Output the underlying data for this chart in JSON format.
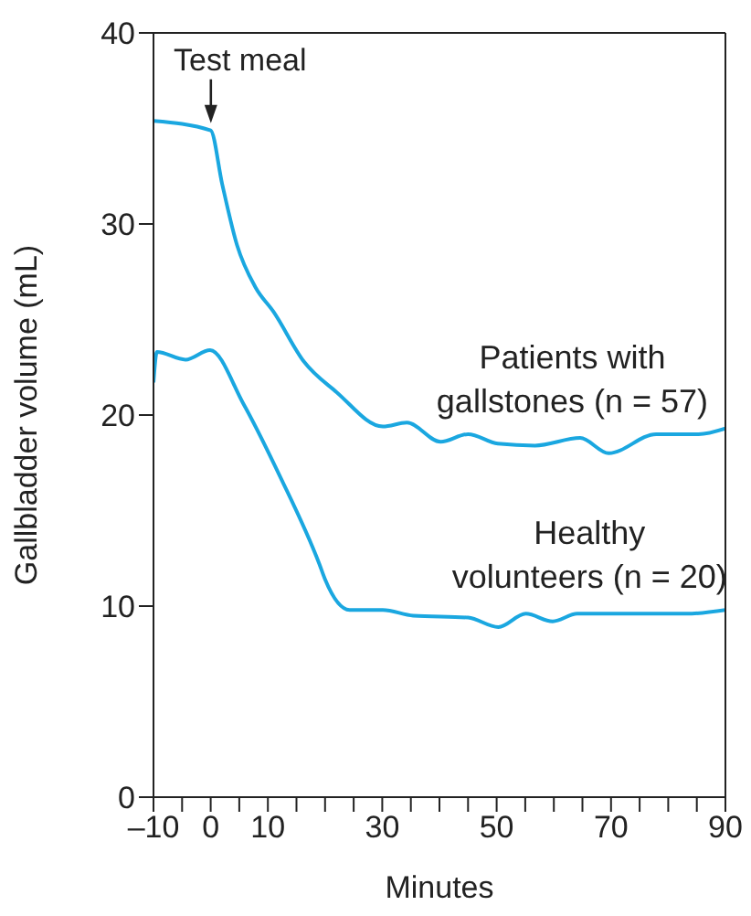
{
  "chart_data": {
    "type": "line",
    "xlabel": "Minutes",
    "ylabel": "Gallbladder volume (mL)",
    "xlim": [
      -10,
      90
    ],
    "ylim": [
      0,
      40
    ],
    "xticks": [
      {
        "value": -10,
        "label": "–10"
      },
      {
        "value": -5,
        "label": null
      },
      0,
      {
        "value": 5,
        "label": null
      },
      10,
      {
        "value": 15,
        "label": null
      },
      {
        "value": 20,
        "label": null
      },
      {
        "value": 25,
        "label": null
      },
      30,
      {
        "value": 35,
        "label": null
      },
      {
        "value": 40,
        "label": null
      },
      {
        "value": 45,
        "label": null
      },
      50,
      {
        "value": 55,
        "label": null
      },
      {
        "value": 60,
        "label": null
      },
      {
        "value": 65,
        "label": null
      },
      70,
      {
        "value": 75,
        "label": null
      },
      {
        "value": 80,
        "label": null
      },
      {
        "value": 85,
        "label": null
      },
      90
    ],
    "yticks": [
      0,
      10,
      20,
      30,
      40
    ],
    "marker": "none",
    "line_style": "solid",
    "annotations": [
      {
        "text": "Test meal",
        "x": 0,
        "y": 35
      }
    ],
    "series": [
      {
        "name": "Patients with\ngallstones (n = 57)",
        "color": "#1aa7e0",
        "x": [
          -10,
          0,
          2,
          4.6,
          7.8,
          11,
          16.3,
          22,
          30.1,
          34.3,
          40.2,
          45,
          50.2,
          56.7,
          64.6,
          69.6,
          77.9,
          85.3,
          90
        ],
        "values": [
          35.4,
          34.9,
          32.1,
          28.9,
          26.7,
          25.4,
          22.8,
          21.2,
          19.4,
          19.6,
          18.6,
          19.0,
          18.5,
          18.4,
          18.8,
          18.0,
          19.0,
          19.0,
          19.3
        ]
      },
      {
        "name": "Healthy\nvolunteers (n = 20)",
        "color": "#1aa7e0",
        "x": [
          -10,
          -9.4,
          -4.4,
          -0.1,
          5.7,
          12.1,
          19,
          20,
          24.3,
          30.1,
          35.4,
          45,
          50.3,
          55.1,
          59.8,
          64.1,
          83.2,
          90
        ],
        "values": [
          21.7,
          23.3,
          22.9,
          23.4,
          20.6,
          16.8,
          12.2,
          11.4,
          9.8,
          9.8,
          9.5,
          9.4,
          8.9,
          9.6,
          9.2,
          9.6,
          9.6,
          9.8
        ]
      }
    ]
  }
}
